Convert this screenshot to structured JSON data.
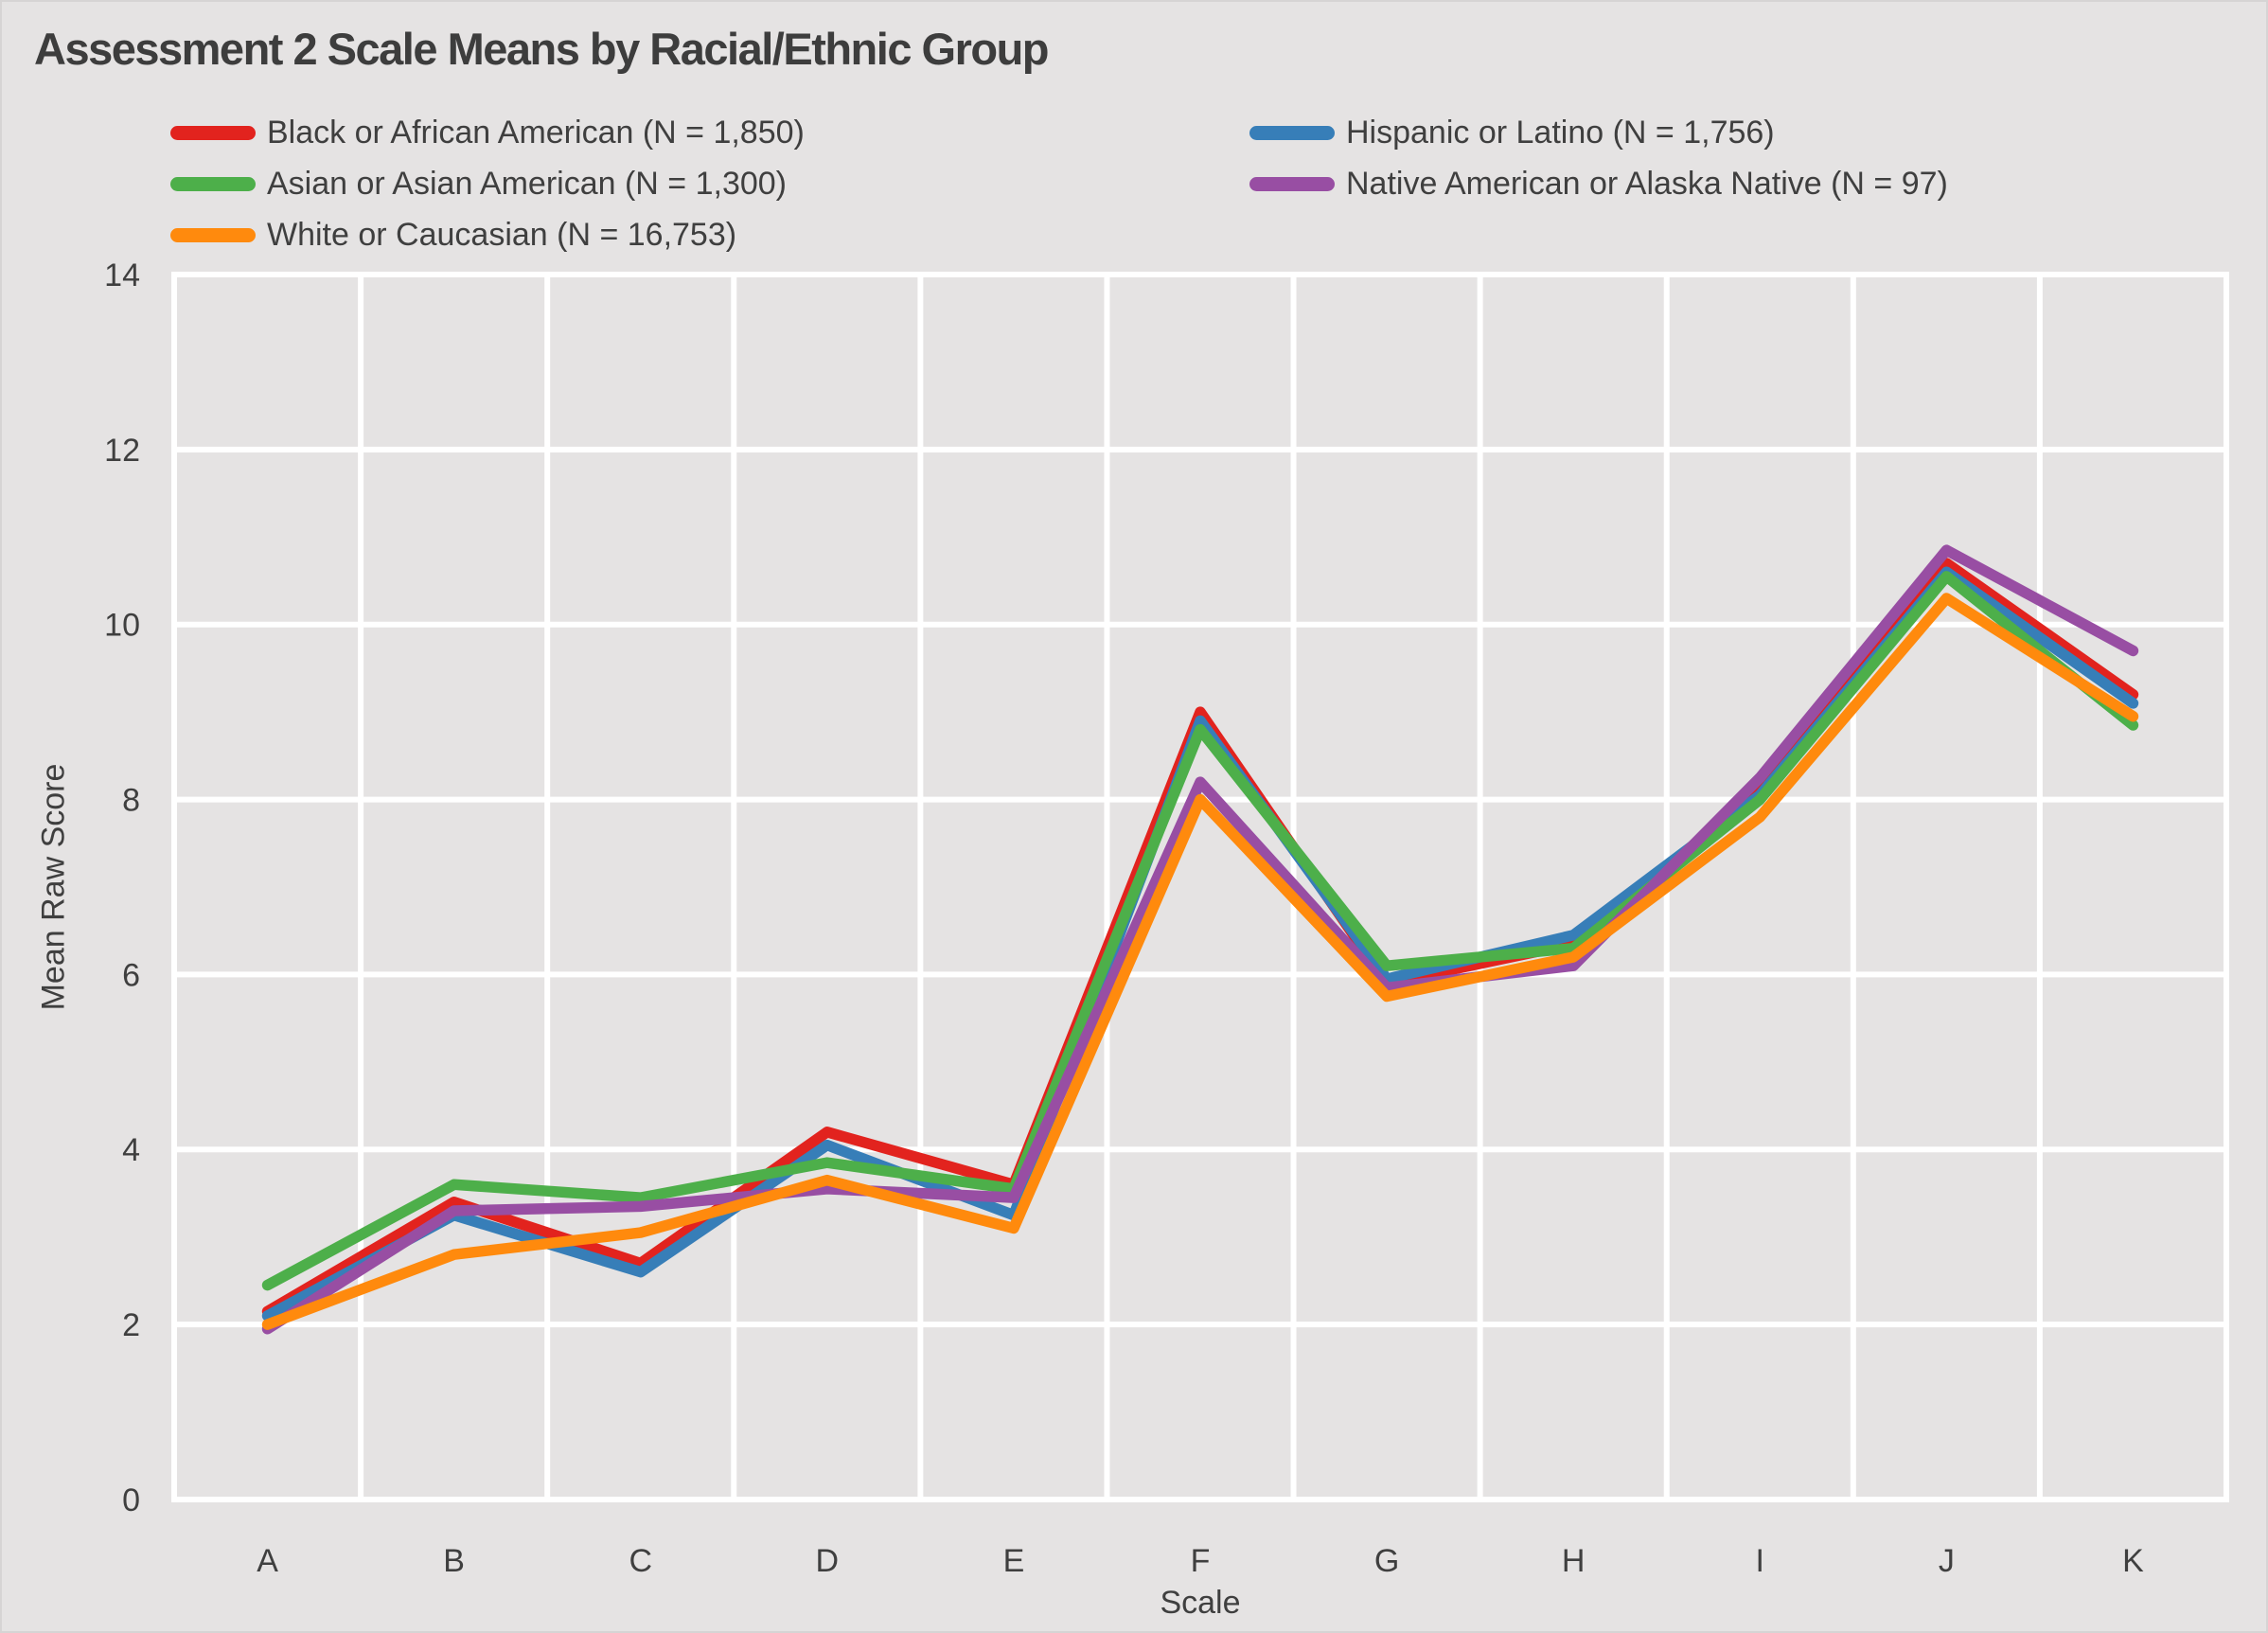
{
  "title": "Assessment 2 Scale Means by Racial/Ethnic Group",
  "colors": {
    "background": "#E5E3E3",
    "gridline": "#FFFFFF",
    "text": "#3F3F3F"
  },
  "chart_data": {
    "type": "line",
    "title": "Assessment 2 Scale Means by Racial/Ethnic Group",
    "xlabel": "Scale",
    "ylabel": "Mean Raw Score",
    "categories": [
      "A",
      "B",
      "C",
      "D",
      "E",
      "F",
      "G",
      "H",
      "I",
      "J",
      "K"
    ],
    "ylim": [
      0,
      14
    ],
    "yticks": [
      0,
      2,
      4,
      6,
      8,
      10,
      12,
      14
    ],
    "grid": true,
    "legend_position": "top",
    "series": [
      {
        "name": "Black or African American (N = 1,850)",
        "color": "#E2231E",
        "legend_column": 0,
        "values": [
          2.15,
          3.4,
          2.7,
          4.2,
          3.6,
          9.0,
          5.9,
          6.35,
          8.1,
          10.7,
          9.2
        ]
      },
      {
        "name": "Hispanic or Latino (N = 1,756)",
        "color": "#377EB8",
        "legend_column": 1,
        "values": [
          2.1,
          3.25,
          2.6,
          4.05,
          3.25,
          8.9,
          5.95,
          6.45,
          8.05,
          10.6,
          9.1
        ]
      },
      {
        "name": "Asian or Asian American (N = 1,300)",
        "color": "#4DAF4A",
        "legend_column": 0,
        "values": [
          2.45,
          3.6,
          3.45,
          3.85,
          3.55,
          8.8,
          6.1,
          6.3,
          8.0,
          10.55,
          8.85
        ]
      },
      {
        "name": "Native American or Alaska Native (N = 97)",
        "color": "#984EA3",
        "legend_column": 1,
        "values": [
          1.95,
          3.3,
          3.35,
          3.55,
          3.45,
          8.2,
          5.85,
          6.1,
          8.25,
          10.85,
          9.7
        ]
      },
      {
        "name": "White or Caucasian (N = 16,753)",
        "color": "#FF8A0D",
        "legend_column": 0,
        "values": [
          2.0,
          2.8,
          3.05,
          3.65,
          3.1,
          8.0,
          5.75,
          6.2,
          7.8,
          10.3,
          8.95
        ]
      }
    ]
  }
}
